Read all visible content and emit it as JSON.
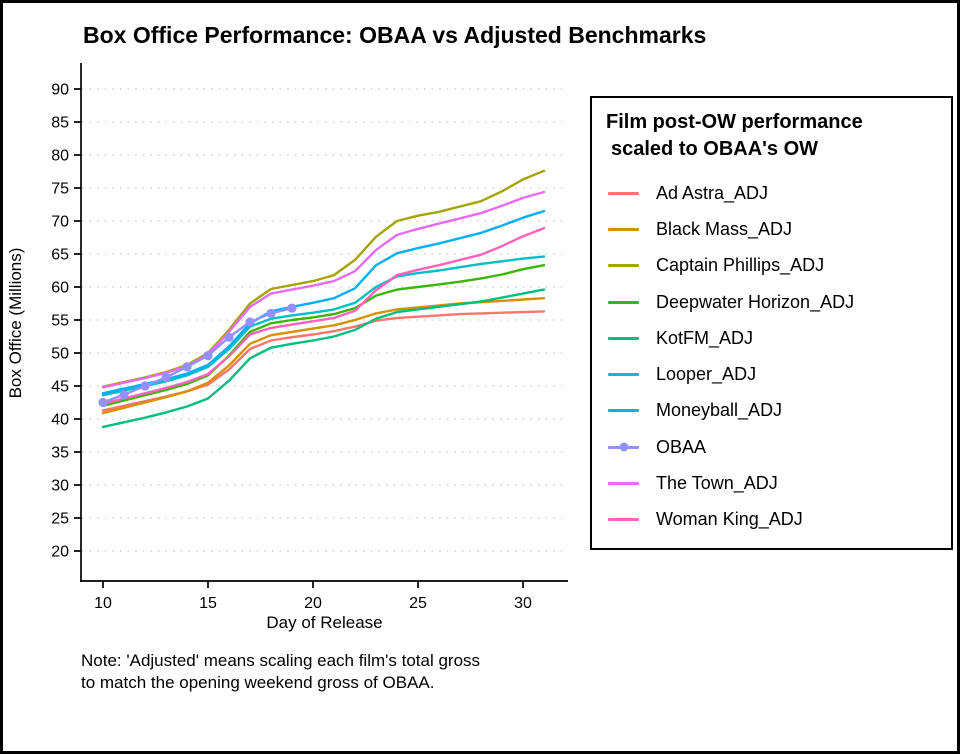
{
  "chart_data": {
    "type": "line",
    "title": "Box Office Performance: OBAA vs Adjusted Benchmarks",
    "xlabel": "Day of Release",
    "ylabel": "Box Office (Millions)",
    "note_line1": "Note: 'Adjusted' means scaling each film's total gross",
    "note_line2": "to match the opening weekend gross of OBAA.",
    "legend_title_line1": "Film post-OW performance",
    "legend_title_line2": "scaled to OBAA's OW",
    "grid": "horizontal-dotted",
    "legend_position": "right",
    "axis_color": "#000000",
    "grid_color": "#C3C3C3",
    "xlim": [
      9,
      32.2
    ],
    "ylim": [
      20,
      90
    ],
    "xticks": [
      10,
      15,
      20,
      25,
      30
    ],
    "yticks": [
      20,
      25,
      30,
      35,
      40,
      45,
      50,
      55,
      60,
      65,
      70,
      75,
      80,
      85,
      90
    ],
    "x": [
      10,
      11,
      12,
      13,
      14,
      15,
      16,
      17,
      18,
      19,
      20,
      21,
      22,
      23,
      24,
      25,
      26,
      27,
      28,
      29,
      30,
      31
    ],
    "series": [
      {
        "name": "Ad Astra_ADJ",
        "color": "#F8766D",
        "marker": false,
        "values": [
          41.3,
          42.0,
          42.7,
          43.4,
          44.2,
          45.2,
          47.5,
          50.6,
          51.9,
          52.4,
          52.8,
          53.3,
          54.0,
          54.9,
          55.3,
          55.5,
          55.7,
          55.9,
          56.0,
          56.1,
          56.2,
          56.3
        ]
      },
      {
        "name": "Black Mass_ADJ",
        "color": "#D89000",
        "marker": false,
        "values": [
          40.9,
          41.7,
          42.5,
          43.3,
          44.2,
          45.5,
          48.1,
          51.4,
          52.7,
          53.2,
          53.7,
          54.2,
          55.0,
          56.0,
          56.6,
          56.9,
          57.2,
          57.5,
          57.7,
          57.9,
          58.1,
          58.3
        ]
      },
      {
        "name": "Captain Phillips_ADJ",
        "color": "#A3A500",
        "marker": false,
        "values": [
          44.9,
          45.6,
          46.3,
          47.1,
          48.2,
          50.0,
          53.5,
          57.5,
          59.7,
          60.3,
          60.9,
          61.8,
          64.1,
          67.6,
          70.0,
          70.8,
          71.4,
          72.2,
          73.0,
          74.5,
          76.3,
          77.6
        ]
      },
      {
        "name": "Deepwater Horizon_ADJ",
        "color": "#39B600",
        "marker": false,
        "values": [
          42.0,
          42.8,
          43.6,
          44.4,
          45.3,
          46.6,
          49.6,
          53.2,
          54.5,
          55.0,
          55.4,
          55.9,
          56.8,
          58.7,
          59.6,
          60.0,
          60.4,
          60.8,
          61.3,
          61.9,
          62.7,
          63.3
        ]
      },
      {
        "name": "KotFM_ADJ",
        "color": "#00BF7D",
        "marker": false,
        "values": [
          38.8,
          39.5,
          40.2,
          41.0,
          41.9,
          43.1,
          45.8,
          49.2,
          50.8,
          51.4,
          51.9,
          52.5,
          53.5,
          55.2,
          56.2,
          56.6,
          57.0,
          57.4,
          57.8,
          58.4,
          59.0,
          59.6
        ]
      },
      {
        "name": "Looper_ADJ",
        "color": "#00BFC4",
        "marker": false,
        "values": [
          43.6,
          44.3,
          45.0,
          45.7,
          46.6,
          47.9,
          50.6,
          54.0,
          55.2,
          55.7,
          56.1,
          56.6,
          57.6,
          60.0,
          61.6,
          62.1,
          62.5,
          63.0,
          63.5,
          63.9,
          64.3,
          64.6
        ]
      },
      {
        "name": "Moneyball_ADJ",
        "color": "#00B0F6",
        "marker": false,
        "values": [
          43.9,
          44.6,
          45.3,
          46.0,
          46.9,
          48.2,
          51.0,
          54.5,
          56.3,
          57.0,
          57.6,
          58.3,
          59.8,
          63.3,
          65.1,
          65.9,
          66.6,
          67.4,
          68.2,
          69.3,
          70.5,
          71.5
        ]
      },
      {
        "name": "OBAA",
        "color": "#9590FF",
        "marker": true,
        "values": [
          42.5,
          43.7,
          45.0,
          46.3,
          47.9,
          49.6,
          52.4,
          54.7,
          56.0,
          56.8
        ]
      },
      {
        "name": "The Town_ADJ",
        "color": "#E76BF3",
        "marker": false,
        "values": [
          44.8,
          45.5,
          46.2,
          47.0,
          48.0,
          49.8,
          53.2,
          57.0,
          59.0,
          59.6,
          60.2,
          60.9,
          62.4,
          65.6,
          67.9,
          68.8,
          69.6,
          70.4,
          71.2,
          72.3,
          73.5,
          74.4
        ]
      },
      {
        "name": "Woman King_ADJ",
        "color": "#FF62BC",
        "marker": false,
        "values": [
          42.3,
          43.1,
          43.9,
          44.7,
          45.6,
          46.8,
          49.5,
          52.8,
          53.8,
          54.3,
          54.8,
          55.3,
          56.4,
          59.5,
          61.8,
          62.6,
          63.3,
          64.1,
          64.9,
          66.2,
          67.7,
          68.9
        ]
      }
    ]
  }
}
